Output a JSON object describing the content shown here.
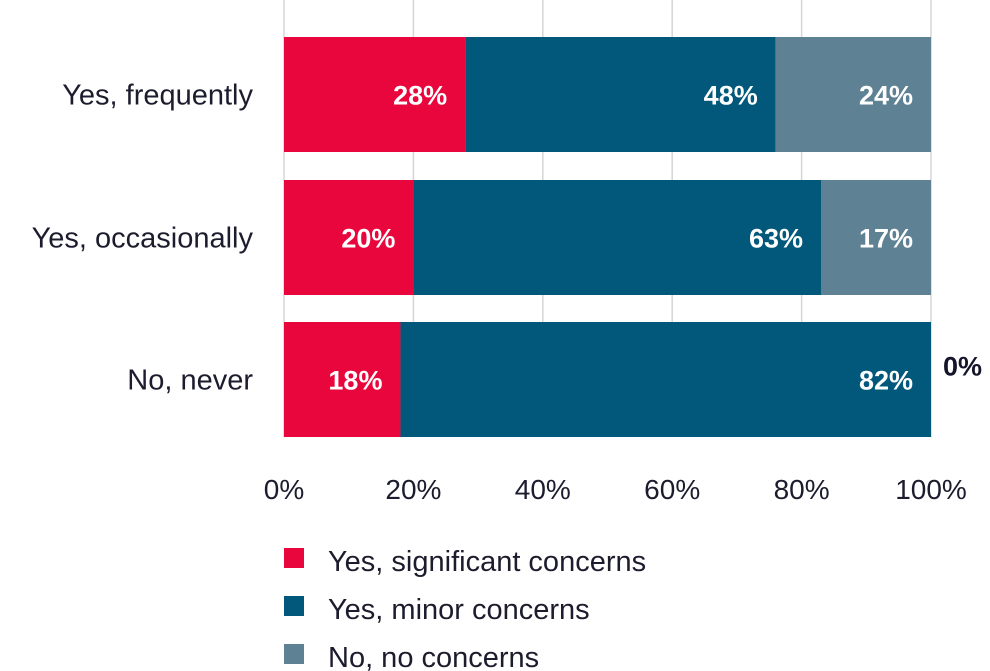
{
  "chart_data": {
    "type": "bar",
    "orientation": "horizontal",
    "stacked": true,
    "categories": [
      "Yes, frequently",
      "Yes, occasionally",
      "No, never"
    ],
    "series": [
      {
        "name": "Yes, significant concerns",
        "values": [
          28,
          20,
          18
        ],
        "labels": [
          "28%",
          "20%",
          "18%"
        ],
        "color": "#e8063c"
      },
      {
        "name": "Yes, minor concerns",
        "values": [
          48,
          63,
          82
        ],
        "labels": [
          "48%",
          "63%",
          "82%"
        ],
        "color": "#01587a"
      },
      {
        "name": "No, no concerns",
        "values": [
          24,
          17,
          0
        ],
        "labels": [
          "24%",
          "17%",
          "0%"
        ],
        "color": "#5e8294"
      }
    ],
    "xlim": [
      0,
      100
    ],
    "xticks": [
      0,
      20,
      40,
      60,
      80,
      100
    ],
    "xtick_labels": [
      "0%",
      "20%",
      "40%",
      "60%",
      "80%",
      "100%"
    ],
    "grid": "vertical",
    "legend_position": "bottom",
    "title": "",
    "xlabel": "",
    "ylabel": ""
  }
}
